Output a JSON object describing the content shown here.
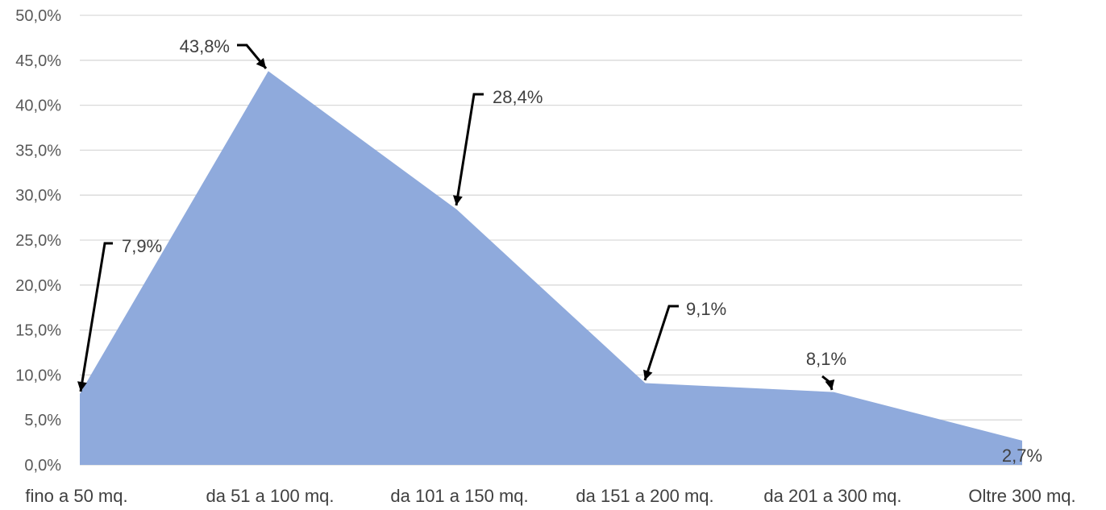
{
  "chart_data": {
    "type": "area",
    "categories": [
      "fino a 50 mq.",
      "da 51 a 100 mq.",
      "da 101 a 150 mq.",
      "da 151 a 200 mq.",
      "da 201 a 300 mq.",
      "Oltre 300 mq."
    ],
    "values": [
      7.9,
      43.8,
      28.4,
      9.1,
      8.1,
      2.7
    ],
    "data_labels": [
      "7,9%",
      "43,8%",
      "28,4%",
      "9,1%",
      "8,1%",
      "2,7%"
    ],
    "y_ticks": [
      "0,0%",
      "5,0%",
      "10,0%",
      "15,0%",
      "20,0%",
      "25,0%",
      "30,0%",
      "35,0%",
      "40,0%",
      "45,0%",
      "50,0%"
    ],
    "ylim": [
      0,
      50
    ],
    "grid": true,
    "legend": "none",
    "title": "",
    "xlabel": "",
    "ylabel": "",
    "fill_color": "#8faadc",
    "grid_color": "#d9d9d9"
  }
}
